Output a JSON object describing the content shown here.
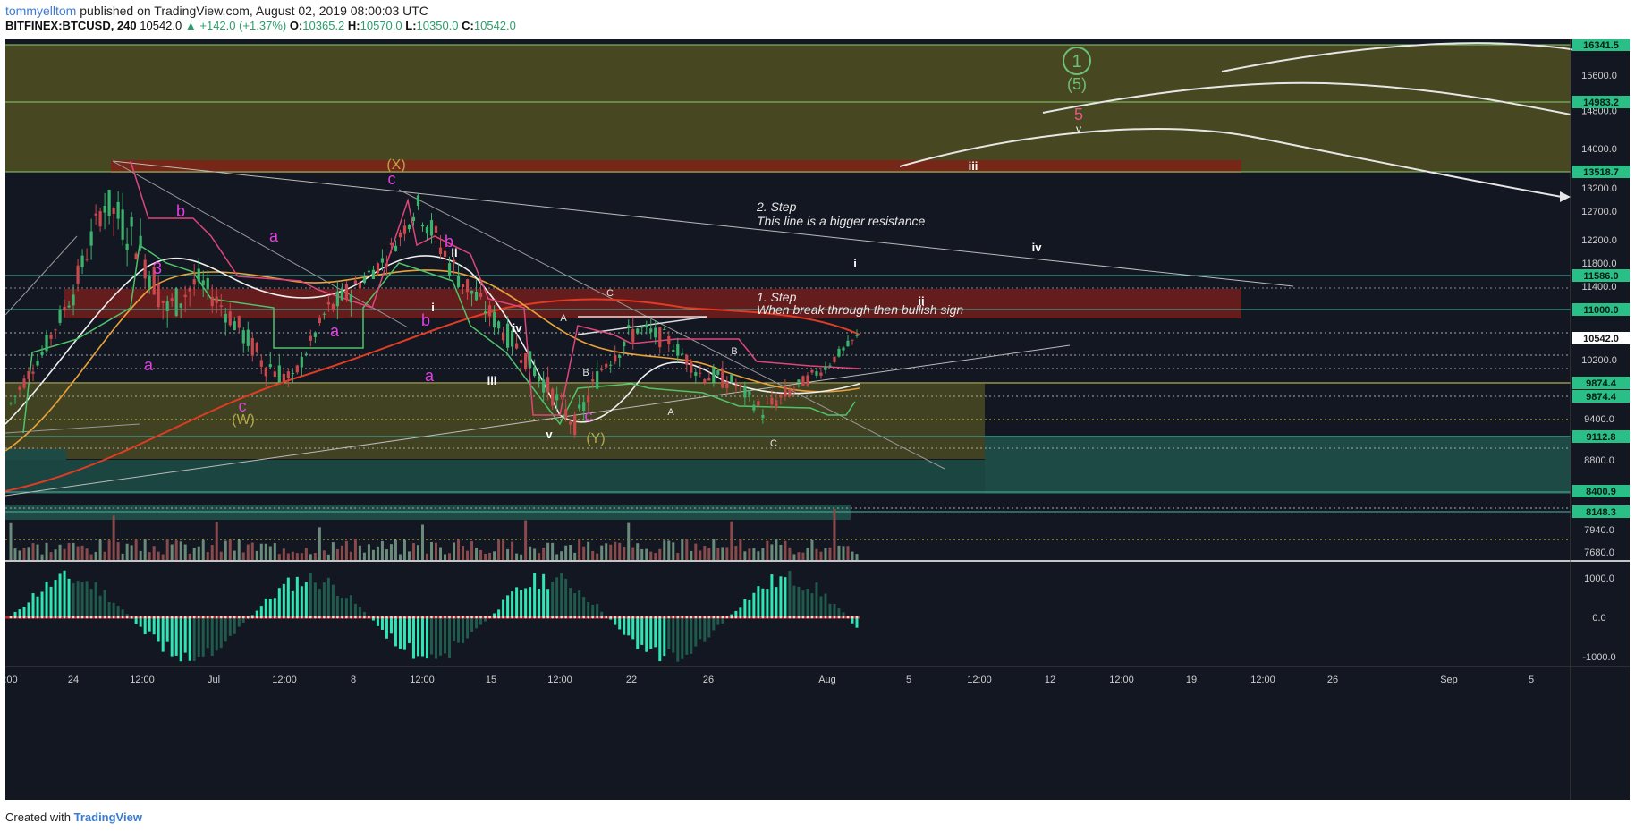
{
  "header": {
    "author": "tommyelltom",
    "published_text": "published on TradingView.com, August 02, 2019 08:00:03 UTC",
    "symbol": "BITFINEX:BTCUSD, 240",
    "last": "10542.0",
    "change": "▲ +142.0 (+1.37%)",
    "open_label": "O:",
    "open": "10365.2",
    "high_label": "H:",
    "high": "10570.0",
    "low_label": "L:",
    "low": "10350.0",
    "close_label": "C:",
    "close": "10542.0"
  },
  "footer": {
    "created_with": "Created with",
    "brand": "TradingView"
  },
  "colors": {
    "background": "#131722",
    "olive_zone": "#4a4a22",
    "red_zone": "#6e1d1d",
    "teal_zone": "#1d4a44",
    "green_label": "#2bbf88",
    "label_white": "#ffffff",
    "pink": "#e040e0",
    "wave_green": "#6dbf73"
  },
  "chart_data": {
    "type": "candlestick",
    "title": "",
    "price_axis_ticks": [
      "15600.0",
      "14800.0",
      "14000.0",
      "13200.0",
      "12700.0",
      "12200.0",
      "11800.0",
      "11400.0",
      "10200.0",
      "9400.0",
      "8800.0",
      "7940.0",
      "7680.0"
    ],
    "price_axis_labels": [
      {
        "text": "16341.5",
        "style": "green"
      },
      {
        "text": "14983.2",
        "style": "green"
      },
      {
        "text": "13518.7",
        "style": "green"
      },
      {
        "text": "11586.0",
        "style": "green"
      },
      {
        "text": "11000.0",
        "style": "green"
      },
      {
        "text": "10542.0",
        "style": "white"
      },
      {
        "text": "9874.4",
        "style": "green"
      },
      {
        "text": "9874.4",
        "style": "green"
      },
      {
        "text": "9112.8",
        "style": "green"
      },
      {
        "text": "8400.9",
        "style": "green"
      },
      {
        "text": "8148.3",
        "style": "green"
      }
    ],
    "oscillator_ticks": [
      "1000.0",
      "0.0",
      "-1000.0"
    ],
    "time_axis_labels": [
      ":00",
      "24",
      "12:00",
      "Jul",
      "12:00",
      "8",
      "12:00",
      "15",
      "12:00",
      "22",
      "26",
      "Aug",
      "5",
      "12:00",
      "12",
      "12:00",
      "19",
      "12:00",
      "26",
      "Sep",
      "5"
    ],
    "annotations": {
      "step2": "2. Step",
      "step2_text": "This line is a bigger resistance",
      "step1": "1. Step",
      "step1_text": "When break through then bullish sign",
      "circle_1": "1",
      "wave_5_paren": "(5)",
      "wave_5": "5",
      "wave_5_marker": "v",
      "wave_X": "(X)",
      "wave_W": "(W)",
      "wave_Y": "(Y)",
      "pink_labels": [
        "b",
        "a",
        "a",
        "b",
        "c",
        "a",
        "b",
        "a",
        "c",
        "c",
        "3"
      ],
      "roman_labels": [
        "iii",
        "iv",
        "i",
        "ii",
        "ii",
        "i",
        "iii",
        "iv",
        "v"
      ],
      "small_labels": [
        "A",
        "B",
        "C",
        "A",
        "B",
        "C"
      ]
    },
    "sample_candles": [
      {
        "o": 9300,
        "h": 9700,
        "l": 9100,
        "c": 9600
      },
      {
        "o": 9600,
        "h": 10400,
        "l": 9500,
        "c": 10300
      },
      {
        "o": 10300,
        "h": 11500,
        "l": 10100,
        "c": 11300
      },
      {
        "o": 11300,
        "h": 13200,
        "l": 11000,
        "c": 12900
      },
      {
        "o": 12900,
        "h": 13800,
        "l": 11800,
        "c": 12200
      },
      {
        "o": 12200,
        "h": 12400,
        "l": 10800,
        "c": 11000
      },
      {
        "o": 11000,
        "h": 11800,
        "l": 10600,
        "c": 11500
      },
      {
        "o": 11500,
        "h": 11900,
        "l": 10700,
        "c": 10900
      },
      {
        "o": 10900,
        "h": 11100,
        "l": 10000,
        "c": 10200
      },
      {
        "o": 10200,
        "h": 10400,
        "l": 9700,
        "c": 9900
      },
      {
        "o": 9900,
        "h": 11100,
        "l": 9800,
        "c": 10900
      },
      {
        "o": 10900,
        "h": 11600,
        "l": 10700,
        "c": 11400
      },
      {
        "o": 11400,
        "h": 12100,
        "l": 11200,
        "c": 11900
      },
      {
        "o": 11900,
        "h": 13200,
        "l": 11700,
        "c": 12800
      },
      {
        "o": 12800,
        "h": 13100,
        "l": 11600,
        "c": 11800
      },
      {
        "o": 11800,
        "h": 12000,
        "l": 10900,
        "c": 11100
      },
      {
        "o": 11100,
        "h": 11300,
        "l": 10300,
        "c": 10500
      },
      {
        "o": 10500,
        "h": 10700,
        "l": 9800,
        "c": 9900
      },
      {
        "o": 9900,
        "h": 10000,
        "l": 9100,
        "c": 9300
      },
      {
        "o": 9300,
        "h": 10400,
        "l": 9200,
        "c": 10200
      },
      {
        "o": 10200,
        "h": 10900,
        "l": 10000,
        "c": 10700
      },
      {
        "o": 10700,
        "h": 11000,
        "l": 10300,
        "c": 10500
      },
      {
        "o": 10500,
        "h": 10600,
        "l": 9800,
        "c": 10000
      },
      {
        "o": 10000,
        "h": 10300,
        "l": 9700,
        "c": 9900
      },
      {
        "o": 9900,
        "h": 10100,
        "l": 9400,
        "c": 9500
      },
      {
        "o": 9500,
        "h": 9900,
        "l": 9400,
        "c": 9800
      },
      {
        "o": 9800,
        "h": 10200,
        "l": 9700,
        "c": 10100
      },
      {
        "o": 10100,
        "h": 10570,
        "l": 10000,
        "c": 10542
      }
    ]
  }
}
